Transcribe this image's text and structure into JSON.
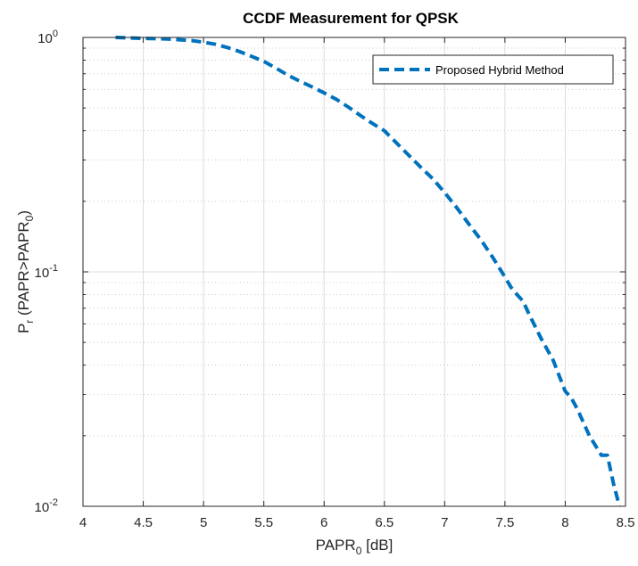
{
  "chart_data": {
    "type": "line",
    "title": "CCDF Measurement for QPSK",
    "xlabel": {
      "main": "PAPR",
      "sub": "0",
      "tail": " [dB]"
    },
    "ylabel": {
      "p1": "P",
      "sub1": "r",
      "p2": " (PAPR>PAPR",
      "sub2": "0",
      "p3": ")"
    },
    "xlim": [
      4,
      8.5
    ],
    "ylim": [
      0.01,
      1
    ],
    "yscale": "log",
    "grid": true,
    "legend_position": "top-right",
    "x_ticks": [
      4,
      4.5,
      5,
      5.5,
      6,
      6.5,
      7,
      7.5,
      8,
      8.5
    ],
    "x_tick_labels": [
      "4",
      "4.5",
      "5",
      "5.5",
      "6",
      "6.5",
      "7",
      "7.5",
      "8",
      "8.5"
    ],
    "y_ticks": [
      {
        "value": 1,
        "base": "10",
        "exp": "0"
      },
      {
        "value": 0.1,
        "base": "10",
        "exp": "-1"
      },
      {
        "value": 0.01,
        "base": "10",
        "exp": "-2"
      }
    ],
    "series": [
      {
        "name": "Proposed Hybrid Method",
        "color": "#0072BD",
        "style": "dashed",
        "x": [
          4.27,
          4.5,
          4.7,
          4.9,
          5.0,
          5.1,
          5.2,
          5.3,
          5.4,
          5.5,
          5.6,
          5.7,
          5.8,
          5.9,
          6.0,
          6.1,
          6.2,
          6.3,
          6.4,
          6.5,
          6.6,
          6.7,
          6.8,
          6.9,
          7.0,
          7.1,
          7.2,
          7.3,
          7.4,
          7.5,
          7.55,
          7.6,
          7.65,
          7.7,
          7.8,
          7.9,
          7.95,
          8.0,
          8.05,
          8.1,
          8.2,
          8.3,
          8.35,
          8.4,
          8.45
        ],
        "y": [
          1.0,
          0.99,
          0.985,
          0.97,
          0.955,
          0.935,
          0.905,
          0.87,
          0.83,
          0.79,
          0.74,
          0.69,
          0.65,
          0.615,
          0.58,
          0.545,
          0.505,
          0.465,
          0.43,
          0.4,
          0.355,
          0.315,
          0.28,
          0.25,
          0.218,
          0.188,
          0.16,
          0.137,
          0.115,
          0.095,
          0.086,
          0.08,
          0.075,
          0.066,
          0.052,
          0.042,
          0.036,
          0.031,
          0.029,
          0.026,
          0.02,
          0.0165,
          0.0165,
          0.0125,
          0.01
        ]
      }
    ]
  }
}
